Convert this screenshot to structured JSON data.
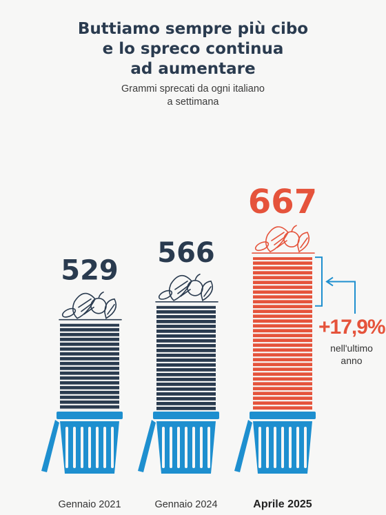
{
  "title": [
    "Buttiamo sempre più cibo",
    "e lo spreco continua",
    "ad aumentare"
  ],
  "subtitle": [
    "Grammi sprecati da ogni italiano",
    "a settimana"
  ],
  "chart_data": {
    "type": "bar",
    "unit": "grammi a settimana",
    "categories": [
      "Gennaio 2021",
      "Gennaio 2024",
      "Aprile 2025"
    ],
    "values": [
      529,
      566,
      667
    ],
    "value_labels": [
      "529",
      "566",
      "667"
    ],
    "highlight_index": 2,
    "annotation": {
      "value": "+17,9%",
      "text": [
        "nell'ultimo",
        "anno"
      ]
    }
  },
  "colors": {
    "dark": "#2a3b4f",
    "accent": "#e5533b",
    "bin": "#1e8fcf",
    "bracket": "#1e8fcf"
  },
  "icons": [
    "food-waste-icon",
    "trash-bin-icon"
  ]
}
